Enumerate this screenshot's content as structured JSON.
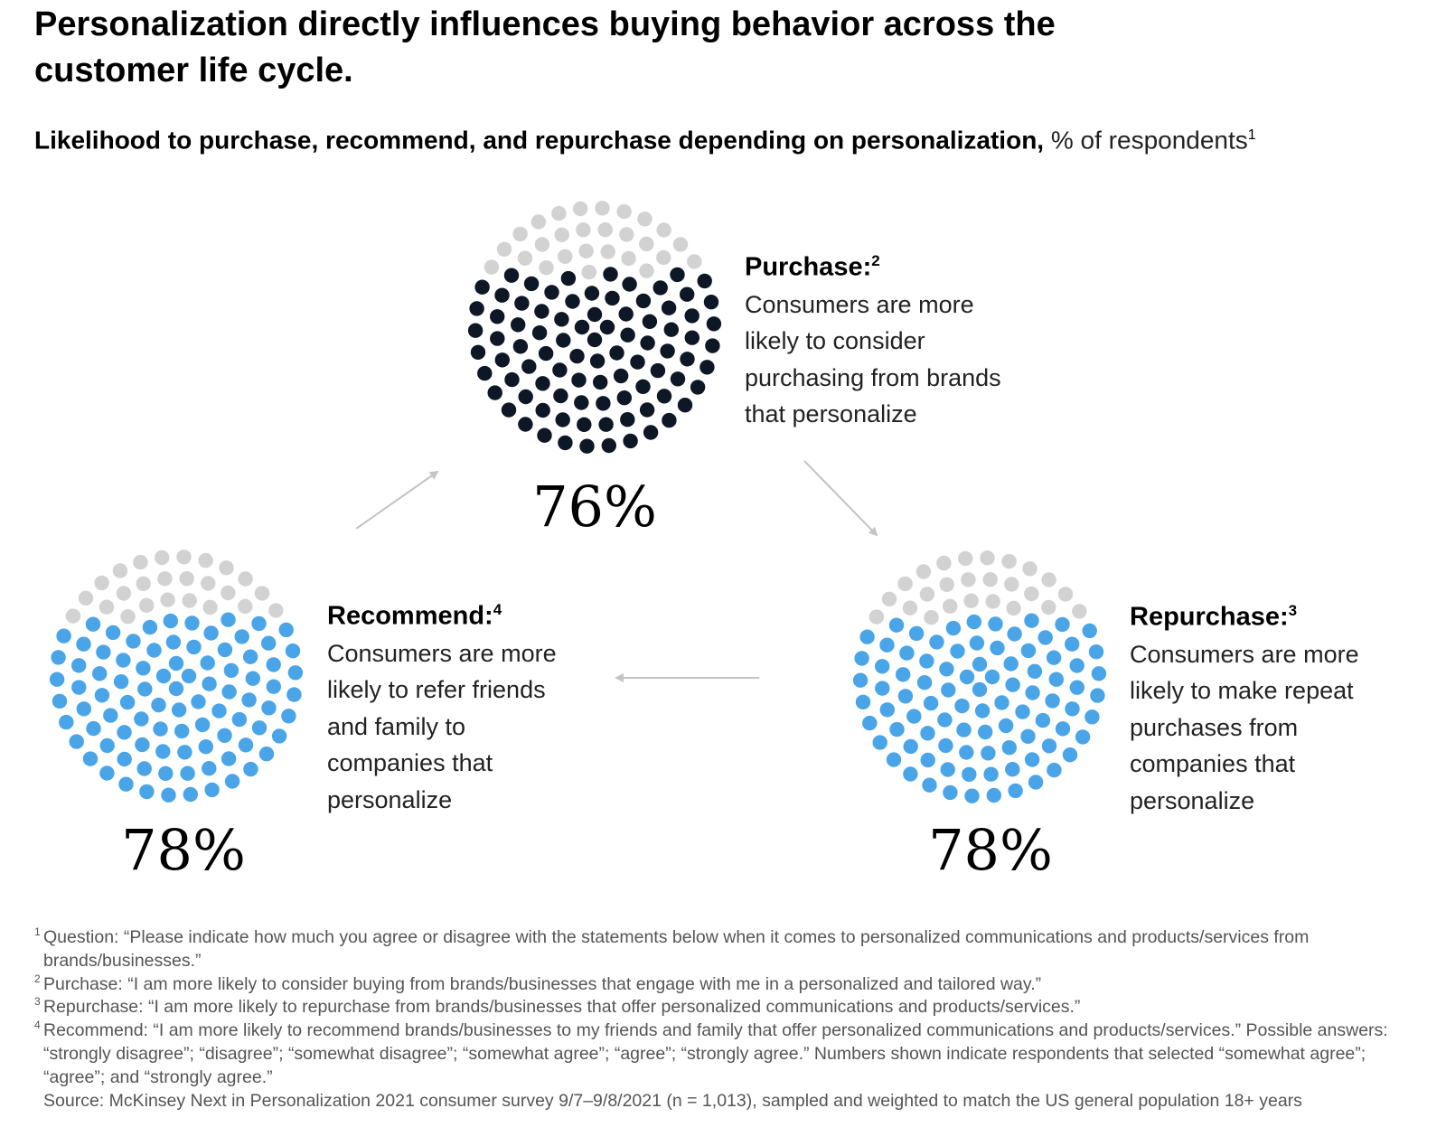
{
  "title": "Personalization directly influences buying behavior across the customer life cycle.",
  "subtitle": {
    "bold": "Likelihood to purchase, recommend, and repurchase depending on personalization,",
    "unit": "% of respondents",
    "note": "1"
  },
  "colors": {
    "purchase": "#0d1726",
    "recommend": "#4aa5e8",
    "repurchase": "#4aa5e8",
    "remainder": "#d2d2d2",
    "arrow": "#c4c4c4"
  },
  "chart_data": {
    "type": "dot-proportion",
    "series": [
      {
        "key": "purchase",
        "label": "Purchase:",
        "note": "2",
        "value": 76,
        "value_label": "76%",
        "description": "Consumers are more likely to consider purchasing from brands that personalize"
      },
      {
        "key": "repurchase",
        "label": "Repurchase:",
        "note": "3",
        "value": 78,
        "value_label": "78%",
        "description": "Consumers are more likely to make repeat purchases from companies that personalize"
      },
      {
        "key": "recommend",
        "label": "Recommend:",
        "note": "4",
        "value": 78,
        "value_label": "78%",
        "description": "Consumers are more likely to refer friends and family to companies that personalize"
      }
    ],
    "flow": [
      "recommend",
      "purchase",
      "repurchase",
      "recommend"
    ]
  },
  "footnotes": [
    {
      "mark": "1",
      "text": "Question: “Please indicate how much you agree or disagree with the statements below when it comes to personalized communications and products/services from brands/businesses.”"
    },
    {
      "mark": "2",
      "text": "Purchase: “I am more likely to consider buying from brands/businesses that engage with me in a personalized and tailored way.”"
    },
    {
      "mark": "3",
      "text": "Repurchase: “I am more likely to repurchase from brands/businesses that offer personalized communications and products/services.”"
    },
    {
      "mark": "4",
      "text": "Recommend: “I am more likely to recommend brands/businesses to my friends and family that offer personalized communications and products/services.” Possible answers: “strongly disagree”; “disagree”; “somewhat disagree”; “somewhat agree”; “agree”; “strongly agree.” Numbers shown indicate respondents that selected “somewhat agree”; “agree”; and “strongly agree.”"
    },
    {
      "mark": "",
      "text": "Source: McKinsey Next in Personalization 2021 consumer survey 9/7–9/8/2021 (n = 1,013), sampled and weighted to match the US general population 18+ years"
    }
  ]
}
